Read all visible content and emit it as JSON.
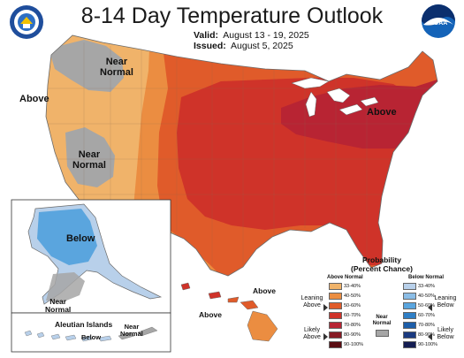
{
  "header": {
    "title": "8-14 Day Temperature Outlook",
    "valid_label": "Valid:",
    "valid_dates": "August 13 - 19, 2025",
    "issued_label": "Issued:",
    "issued_date": "August 5, 2025",
    "logo_text": "NOAA"
  },
  "map_labels": {
    "near_normal_nw": [
      "Near",
      "Normal"
    ],
    "above_west": "Above",
    "near_normal_sw": [
      "Near",
      "Normal"
    ],
    "above_northeast": "Above",
    "alaska_below": "Below",
    "alaska_near_normal": [
      "Near",
      "Normal"
    ],
    "aleutian_title": "Aleutian Islands",
    "aleutian_below": "Below",
    "aleutian_near_normal": [
      "Near",
      "Normal"
    ],
    "hawaii_above_1": "Above",
    "hawaii_above_2": "Above"
  },
  "legend": {
    "title": [
      "Probability",
      "(Percent Chance)"
    ],
    "above_header": "Above Normal",
    "below_header": "Below Normal",
    "above_bins": [
      {
        "label": "33-40%",
        "color": "#f0b36a"
      },
      {
        "label": "40-50%",
        "color": "#eb8d41"
      },
      {
        "label": "50-60%",
        "color": "#e05b2a"
      },
      {
        "label": "60-70%",
        "color": "#cf3329"
      },
      {
        "label": "70-80%",
        "color": "#b82433"
      },
      {
        "label": "80-90%",
        "color": "#861a23"
      },
      {
        "label": "90-100%",
        "color": "#5a0d12"
      }
    ],
    "below_bins": [
      {
        "label": "33-40%",
        "color": "#b8d0ea"
      },
      {
        "label": "40-50%",
        "color": "#8bbde6"
      },
      {
        "label": "50-60%",
        "color": "#5aa5de"
      },
      {
        "label": "60-70%",
        "color": "#2f7fc6"
      },
      {
        "label": "70-80%",
        "color": "#1d5ea9"
      },
      {
        "label": "80-90%",
        "color": "#1a3a80"
      },
      {
        "label": "90-100%",
        "color": "#141d52"
      }
    ],
    "near_normal": {
      "label": [
        "Near",
        "Normal"
      ],
      "color": "#a6a6a6"
    },
    "leaning_above": [
      "Leaning",
      "Above"
    ],
    "likely_above": [
      "Likely",
      "Above"
    ],
    "leaning_below": [
      "Leaning",
      "Below"
    ],
    "likely_below": [
      "Likely",
      "Below"
    ]
  },
  "colors": {
    "near_normal": "#a6a6a6",
    "above_33_40": "#f0b36a",
    "above_40_50": "#eb8d41",
    "above_50_60": "#e05b2a",
    "above_60_70": "#cf3329",
    "above_70_80": "#b82433",
    "below_33_40": "#b8d0ea",
    "below_40_50": "#8bbde6",
    "below_50_60": "#5aa5de"
  }
}
